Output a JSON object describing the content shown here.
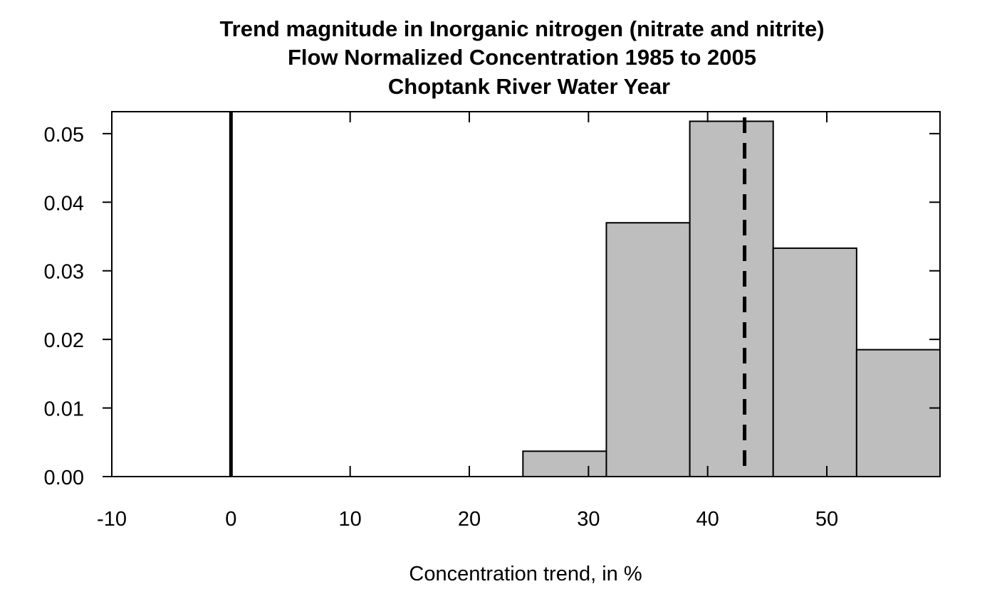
{
  "chart_data": {
    "type": "bar",
    "title_lines": [
      "Trend magnitude in Inorganic nitrogen (nitrate and nitrite)",
      "Flow Normalized Concentration 1985 to 2005",
      "Choptank River Water Year"
    ],
    "xlabel": "Concentration trend, in %",
    "ylabel": "",
    "xlim": [
      -10,
      59.5
    ],
    "ylim": [
      0,
      0.0532
    ],
    "x_ticks": [
      -10,
      0,
      10,
      20,
      30,
      40,
      50
    ],
    "y_ticks": [
      0.0,
      0.01,
      0.02,
      0.03,
      0.04,
      0.05
    ],
    "y_tick_labels": [
      "0.00",
      "0.01",
      "0.02",
      "0.03",
      "0.04",
      "0.05"
    ],
    "bins": [
      {
        "x0": 24.5,
        "x1": 31.5,
        "value": 0.0037
      },
      {
        "x0": 31.5,
        "x1": 38.5,
        "value": 0.037
      },
      {
        "x0": 38.5,
        "x1": 45.5,
        "value": 0.0518
      },
      {
        "x0": 45.5,
        "x1": 52.5,
        "value": 0.0333
      },
      {
        "x0": 52.5,
        "x1": 59.5,
        "value": 0.0185
      }
    ],
    "reference_lines": [
      {
        "x": 0,
        "style": "solid"
      },
      {
        "x": 43.1,
        "style": "dashed"
      }
    ],
    "colors": {
      "bar_fill": "#bebebe",
      "line": "#000000",
      "background": "#ffffff"
    },
    "grid": false
  }
}
